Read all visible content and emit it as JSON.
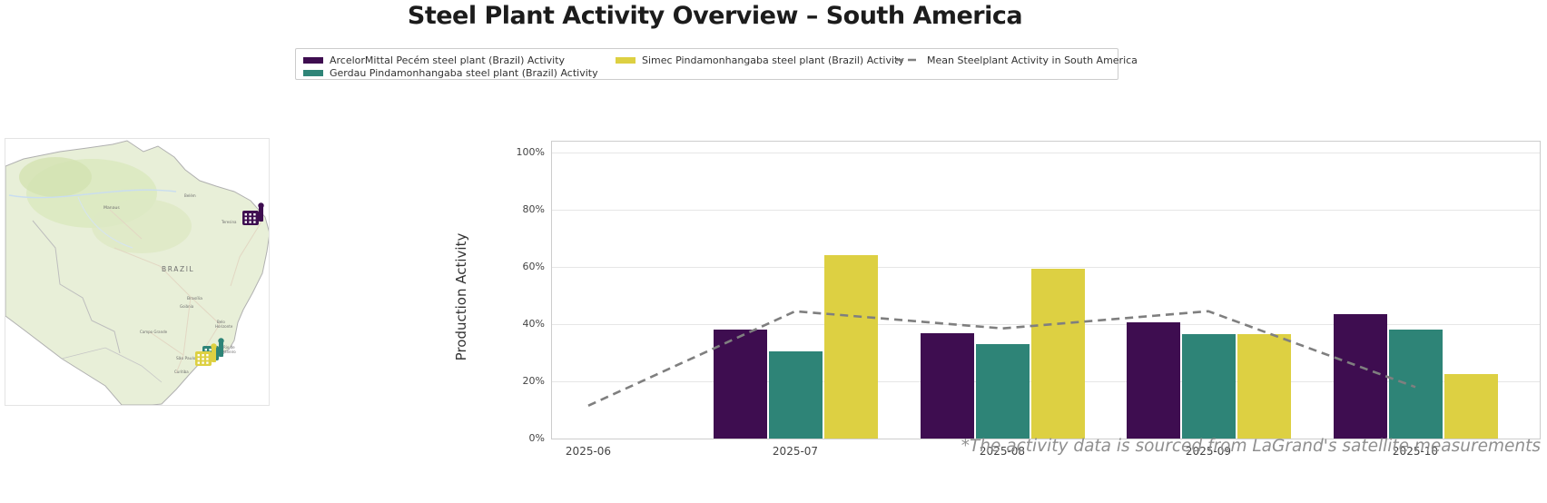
{
  "title": "Steel Plant Activity Overview – South America",
  "legend": {
    "items": [
      {
        "label": "ArcelorMittal Pecém steel plant (Brazil) Activity",
        "color": "#3e0d50",
        "type": "bar"
      },
      {
        "label": "Gerdau Pindamonhangaba steel plant (Brazil) Activity",
        "color": "#2e8477",
        "type": "bar"
      },
      {
        "label": "Simec Pindamonhangaba steel plant (Brazil) Activity",
        "color": "#ddd042",
        "type": "bar"
      },
      {
        "label": "Mean Steelplant Activity in South America",
        "color": "#7f7f7f",
        "type": "dashed-line"
      }
    ]
  },
  "map": {
    "labels": {
      "brazil": "BRAZIL",
      "manaus": "Manaus",
      "belem": "Belém",
      "teresina": "Teresina",
      "brasilia": "Brasília",
      "goiania": "Goiânia",
      "belo_1": "Belo",
      "belo_2": "Horizonte",
      "campo_grande": "Campo Grande",
      "sao_paulo": "São Paulo",
      "rio_1": "Rio de",
      "rio_2": "Janeiro",
      "curitiba": "Curitiba"
    },
    "markers": [
      {
        "name": "ArcelorMittal Pecém steel plant",
        "color": "#3e0d50"
      },
      {
        "name": "Gerdau Pindamonhangaba steel plant",
        "color": "#2e8477"
      },
      {
        "name": "Simec Pindamonhangaba steel plant",
        "color": "#ddd042"
      }
    ]
  },
  "chart_data": {
    "type": "bar",
    "title": "",
    "xlabel": "",
    "ylabel": "Production Activity",
    "categories": [
      "2025-06",
      "2025-07",
      "2025-08",
      "2025-09",
      "2025-10"
    ],
    "series": [
      {
        "name": "ArcelorMittal Pecém steel plant (Brazil) Activity",
        "color": "#3e0d50",
        "values": [
          null,
          38,
          37,
          40.5,
          43.5
        ]
      },
      {
        "name": "Gerdau Pindamonhangaba steel plant (Brazil) Activity",
        "color": "#2e8477",
        "values": [
          null,
          30.5,
          33,
          36.5,
          38
        ]
      },
      {
        "name": "Simec Pindamonhangaba steel plant (Brazil) Activity",
        "color": "#ddd042",
        "values": [
          null,
          64,
          59.5,
          36.5,
          22.5
        ]
      }
    ],
    "mean_line": {
      "name": "Mean Steelplant Activity in South America",
      "color": "#7f7f7f",
      "values": [
        11.5,
        44.5,
        38.5,
        44.5,
        18
      ]
    },
    "ylim": [
      0,
      104
    ],
    "yticks": [
      "0%",
      "20%",
      "40%",
      "60%",
      "80%",
      "100%"
    ],
    "grid": true,
    "legend_position": "top"
  },
  "footnote": "*The activity data is sourced from LaGrand's satellite measurements"
}
